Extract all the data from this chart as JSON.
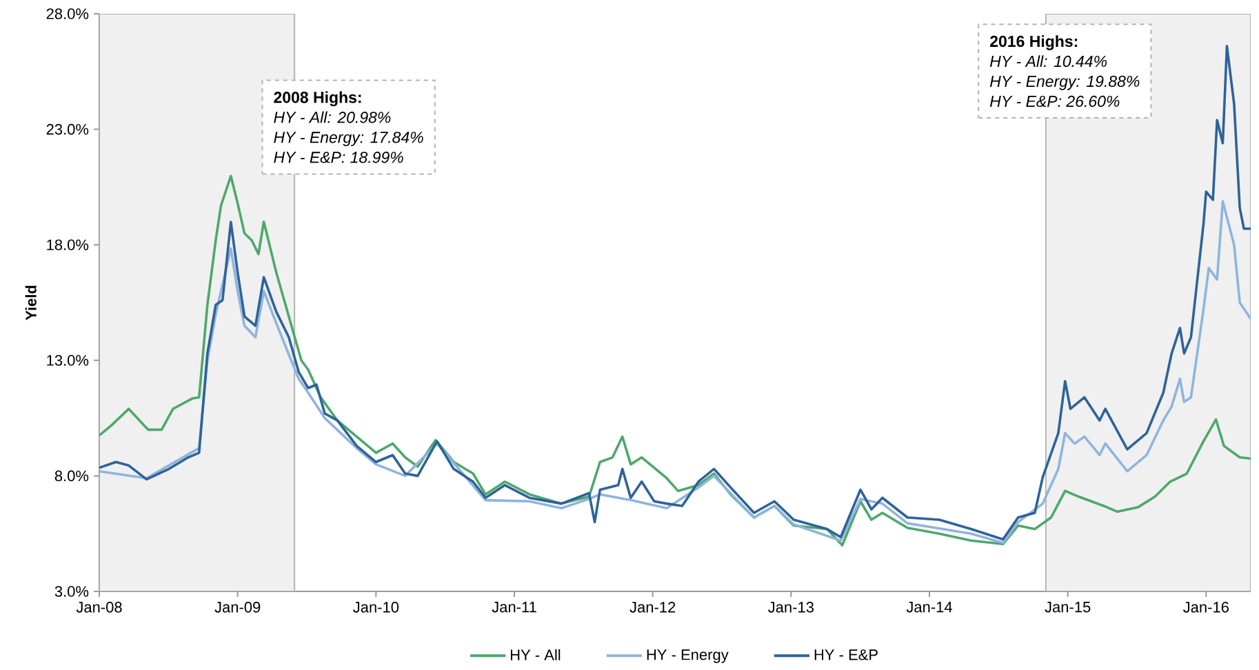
{
  "chart_data": {
    "type": "line",
    "ylabel": "Yield",
    "xlim": [
      "2008-01-01",
      "2016-04-28"
    ],
    "ylim": [
      3,
      28
    ],
    "xticks": [
      {
        "value": "2008-01-01",
        "label": "Jan-08"
      },
      {
        "value": "2009-01-01",
        "label": "Jan-09"
      },
      {
        "value": "2010-01-01",
        "label": "Jan-10"
      },
      {
        "value": "2011-01-01",
        "label": "Jan-11"
      },
      {
        "value": "2012-01-01",
        "label": "Jan-12"
      },
      {
        "value": "2013-01-01",
        "label": "Jan-13"
      },
      {
        "value": "2014-01-01",
        "label": "Jan-14"
      },
      {
        "value": "2015-01-01",
        "label": "Jan-15"
      },
      {
        "value": "2016-01-01",
        "label": "Jan-16"
      }
    ],
    "yticks": [
      {
        "value": 3,
        "label": "3.0%"
      },
      {
        "value": 8,
        "label": "8.0%"
      },
      {
        "value": 13,
        "label": "13.0%"
      },
      {
        "value": 18,
        "label": "18.0%"
      },
      {
        "value": 23,
        "label": "23.0%"
      },
      {
        "value": 28,
        "label": "28.0%"
      }
    ],
    "legend": "bottom",
    "marker": "none",
    "line_style": "solid",
    "bands": [
      {
        "axis": "x",
        "from": "2008-01-01",
        "to": "2009-05-31",
        "color": "#f0f0f0"
      },
      {
        "axis": "x",
        "from": "2014-11-04",
        "to": "2016-04-28",
        "color": "#f0f0f0"
      }
    ],
    "annotations": [
      "2008 Highs:",
      "HY - All: 20.98%",
      "HY - Energy: 17.84%",
      "HY - E&P: 18.99%",
      "2016 Highs:",
      "HY - All: 10.44%",
      "HY - Energy: 19.88%",
      "HY - E&P: 26.60%"
    ],
    "series": [
      {
        "name": "HY - All",
        "color": "#4ea86b",
        "x": [
          "2008-01-01",
          "2008-02-03",
          "2008-03-19",
          "2008-05-09",
          "2008-06-14",
          "2008-07-14",
          "2008-09-03",
          "2008-09-21",
          "2008-10-13",
          "2008-11-04",
          "2008-11-18",
          "2008-12-14",
          "2009-01-01",
          "2009-01-19",
          "2009-02-07",
          "2009-02-25",
          "2009-03-11",
          "2009-04-13",
          "2009-05-16",
          "2009-06-18",
          "2009-07-06",
          "2009-08-08",
          "2009-09-21",
          "2009-11-11",
          "2010-01-01",
          "2010-02-14",
          "2010-03-19",
          "2010-04-21",
          "2010-06-07",
          "2010-07-25",
          "2010-09-14",
          "2010-10-17",
          "2010-12-07",
          "2011-02-10",
          "2011-05-05",
          "2011-07-17",
          "2011-08-15",
          "2011-09-17",
          "2011-10-13",
          "2011-11-04",
          "2011-12-03",
          "2012-02-07",
          "2012-03-08",
          "2012-05-01",
          "2012-06-11",
          "2012-07-25",
          "2012-09-25",
          "2012-11-18",
          "2013-01-08",
          "2013-04-06",
          "2013-05-16",
          "2013-07-03",
          "2013-08-01",
          "2013-08-30",
          "2013-11-04",
          "2014-01-27",
          "2014-04-21",
          "2014-07-14",
          "2014-08-23",
          "2014-10-06",
          "2014-11-18",
          "2014-12-25",
          "2015-01-30",
          "2015-04-06",
          "2015-05-12",
          "2015-07-06",
          "2015-08-19",
          "2015-09-28",
          "2015-11-11",
          "2015-12-25",
          "2016-01-27",
          "2016-02-17",
          "2016-03-30",
          "2016-04-28"
        ],
        "values": [
          9.75,
          10.2,
          10.9,
          10.0,
          10.0,
          10.9,
          11.35,
          11.4,
          15.4,
          18.2,
          19.7,
          20.98,
          19.8,
          18.5,
          18.2,
          17.6,
          19.0,
          16.8,
          14.9,
          13.0,
          12.6,
          11.4,
          10.4,
          9.7,
          9.0,
          9.4,
          8.8,
          8.4,
          9.55,
          8.6,
          8.1,
          7.2,
          7.75,
          7.2,
          6.8,
          7.1,
          8.6,
          8.8,
          9.7,
          8.5,
          8.8,
          7.9,
          7.35,
          7.6,
          8.1,
          7.2,
          6.2,
          6.7,
          5.85,
          5.7,
          5.0,
          6.9,
          6.1,
          6.4,
          5.75,
          5.5,
          5.2,
          5.05,
          5.85,
          5.7,
          6.2,
          7.35,
          7.1,
          6.7,
          6.45,
          6.65,
          7.1,
          7.75,
          8.1,
          9.5,
          10.44,
          9.3,
          8.8,
          8.75
        ]
      },
      {
        "name": "HY - Energy",
        "color": "#8fb4de",
        "x": [
          "2008-01-01",
          "2008-05-05",
          "2008-09-21",
          "2008-10-13",
          "2008-11-04",
          "2008-12-14",
          "2009-01-01",
          "2009-01-19",
          "2009-02-17",
          "2009-03-11",
          "2009-04-13",
          "2009-06-11",
          "2009-07-06",
          "2009-08-19",
          "2009-11-11",
          "2010-01-01",
          "2010-03-19",
          "2010-06-11",
          "2010-10-17",
          "2011-02-10",
          "2011-05-05",
          "2011-07-17",
          "2011-08-15",
          "2011-11-04",
          "2012-02-07",
          "2012-05-01",
          "2012-06-11",
          "2012-09-25",
          "2012-11-18",
          "2013-01-08",
          "2013-05-12",
          "2013-07-03",
          "2013-08-30",
          "2013-11-04",
          "2014-04-21",
          "2014-07-14",
          "2014-08-23",
          "2014-10-27",
          "2014-12-07",
          "2014-12-25",
          "2015-01-19",
          "2015-02-14",
          "2015-03-26",
          "2015-04-10",
          "2015-06-07",
          "2015-07-28",
          "2015-09-10",
          "2015-10-02",
          "2015-10-24",
          "2015-11-04",
          "2015-11-22",
          "2015-12-25",
          "2016-01-08",
          "2016-01-30",
          "2016-02-14",
          "2016-03-15",
          "2016-03-30",
          "2016-04-28"
        ],
        "values": [
          8.2,
          7.9,
          9.2,
          13.0,
          15.0,
          17.84,
          16.0,
          14.5,
          14.0,
          16.0,
          14.6,
          12.2,
          11.6,
          10.5,
          9.2,
          8.5,
          8.0,
          9.4,
          6.95,
          6.9,
          6.6,
          7.0,
          7.2,
          6.95,
          6.6,
          7.5,
          8.0,
          6.2,
          6.7,
          5.9,
          5.2,
          7.0,
          6.8,
          5.95,
          5.5,
          5.1,
          6.0,
          6.8,
          8.3,
          9.85,
          9.4,
          9.7,
          8.9,
          9.4,
          8.2,
          8.9,
          10.4,
          11.0,
          12.2,
          11.2,
          11.4,
          15.2,
          17.0,
          16.5,
          19.88,
          18.0,
          15.5,
          14.8
        ]
      },
      {
        "name": "HY - E&P",
        "color": "#2e6399",
        "x": [
          "2008-01-01",
          "2008-02-14",
          "2008-03-19",
          "2008-05-05",
          "2008-07-03",
          "2008-08-23",
          "2008-09-21",
          "2008-10-13",
          "2008-11-04",
          "2008-11-22",
          "2008-12-14",
          "2009-01-01",
          "2009-01-19",
          "2009-02-17",
          "2009-03-11",
          "2009-04-13",
          "2009-05-16",
          "2009-06-11",
          "2009-07-06",
          "2009-07-28",
          "2009-08-19",
          "2009-09-21",
          "2009-11-11",
          "2010-01-01",
          "2010-02-14",
          "2010-03-19",
          "2010-04-21",
          "2010-06-11",
          "2010-07-25",
          "2010-09-14",
          "2010-10-17",
          "2010-12-07",
          "2011-02-10",
          "2011-05-05",
          "2011-07-17",
          "2011-08-01",
          "2011-08-15",
          "2011-10-02",
          "2011-10-13",
          "2011-11-04",
          "2011-12-03",
          "2012-01-05",
          "2012-02-07",
          "2012-03-19",
          "2012-05-01",
          "2012-06-11",
          "2012-07-25",
          "2012-09-25",
          "2012-11-18",
          "2013-01-08",
          "2013-04-06",
          "2013-05-12",
          "2013-07-03",
          "2013-08-01",
          "2013-08-30",
          "2013-11-04",
          "2014-01-27",
          "2014-04-21",
          "2014-07-14",
          "2014-08-23",
          "2014-10-06",
          "2014-10-27",
          "2014-12-07",
          "2014-12-25",
          "2015-01-08",
          "2015-02-14",
          "2015-03-26",
          "2015-04-10",
          "2015-06-07",
          "2015-07-28",
          "2015-09-10",
          "2015-10-02",
          "2015-10-24",
          "2015-11-04",
          "2015-11-22",
          "2015-12-25",
          "2016-01-01",
          "2016-01-19",
          "2016-01-30",
          "2016-02-14",
          "2016-02-25",
          "2016-03-15",
          "2016-03-30",
          "2016-04-10",
          "2016-04-28"
        ],
        "values": [
          8.35,
          8.6,
          8.45,
          7.85,
          8.3,
          8.8,
          9.0,
          13.3,
          15.4,
          15.6,
          18.99,
          16.8,
          14.9,
          14.5,
          16.6,
          15.1,
          14.0,
          12.5,
          11.8,
          11.95,
          10.7,
          10.4,
          9.3,
          8.6,
          8.9,
          8.1,
          8.0,
          9.5,
          8.3,
          7.75,
          7.05,
          7.6,
          7.05,
          6.8,
          7.25,
          6.0,
          7.4,
          7.6,
          8.3,
          7.05,
          7.75,
          6.9,
          6.8,
          6.7,
          7.75,
          8.3,
          7.5,
          6.4,
          6.9,
          6.1,
          5.7,
          5.35,
          7.4,
          6.55,
          7.05,
          6.2,
          6.1,
          5.7,
          5.25,
          6.2,
          6.4,
          7.95,
          9.85,
          12.1,
          10.9,
          11.4,
          10.4,
          10.9,
          9.15,
          9.85,
          11.6,
          13.3,
          14.4,
          13.3,
          14.0,
          18.9,
          20.3,
          19.95,
          23.4,
          22.4,
          26.6,
          24.1,
          19.6,
          18.7,
          18.7
        ]
      }
    ]
  }
}
